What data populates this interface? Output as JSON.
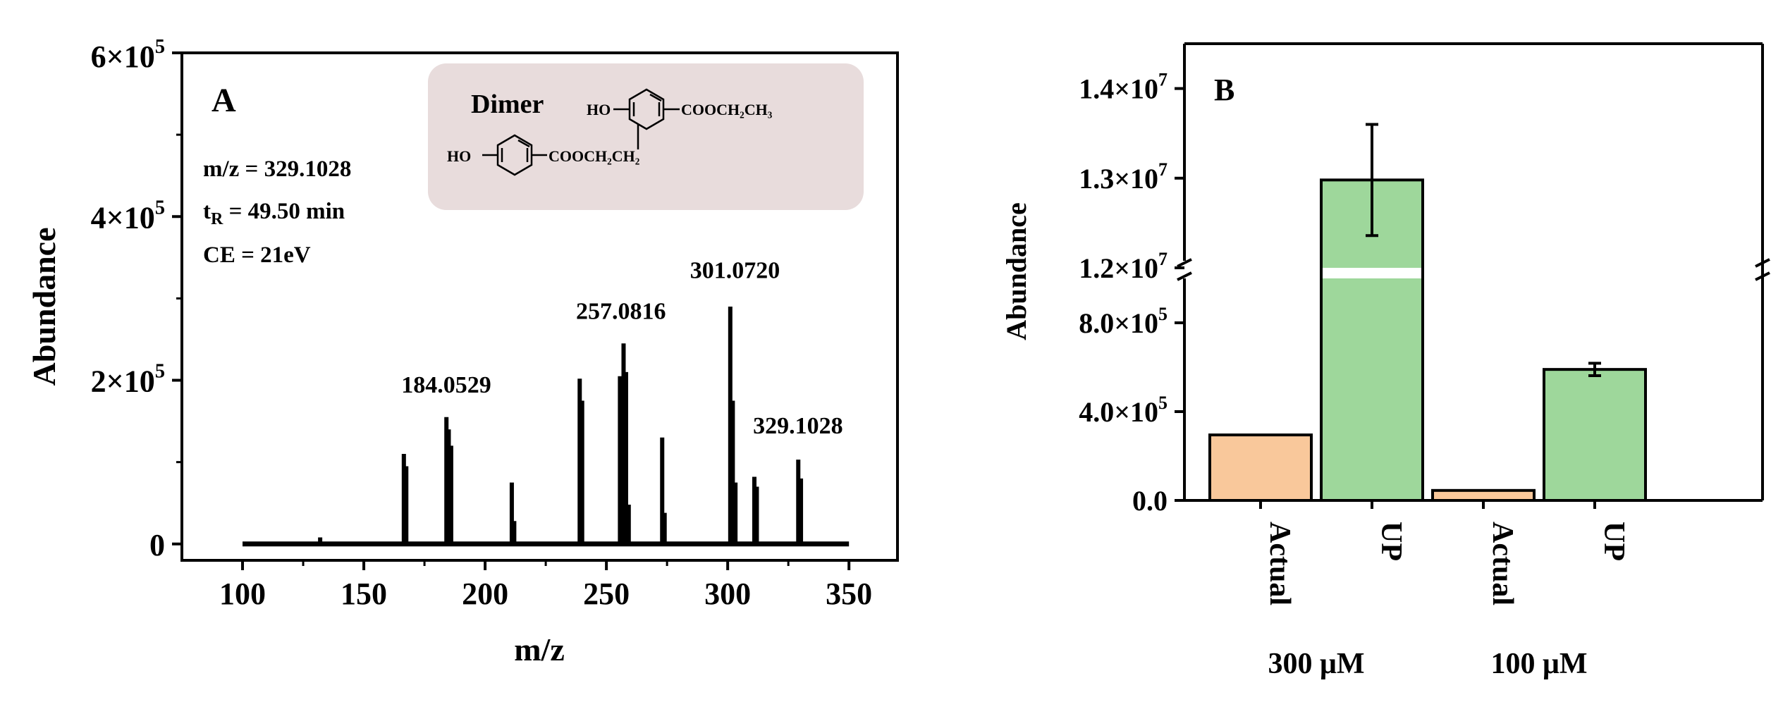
{
  "chart_data": [
    {
      "type": "bar",
      "panel_label": "A",
      "xlabel": "m/z",
      "ylabel": "Abundance",
      "xlim": [
        75,
        370
      ],
      "ylim": [
        -20000,
        600000
      ],
      "x_ticks": [
        100,
        150,
        200,
        250,
        300,
        350
      ],
      "x_tick_labels": [
        "100",
        "150",
        "200",
        "250",
        "300",
        "350"
      ],
      "y_ticks": [
        0,
        200000,
        400000,
        600000
      ],
      "y_tick_labels": [
        {
          "base": "0",
          "exp": ""
        },
        {
          "base": "2×10",
          "exp": "5"
        },
        {
          "base": "4×10",
          "exp": "5"
        },
        {
          "base": "6×10",
          "exp": "5"
        }
      ],
      "info_lines": [
        {
          "main": "m/z = 329.1028",
          "sub": "",
          "rest": ""
        },
        {
          "main": "t",
          "sub": "R",
          "rest": " = 49.50 min"
        },
        {
          "main": "CE = 21eV",
          "sub": "",
          "rest": ""
        }
      ],
      "inset": {
        "title": "Dimer",
        "group_left": "HO",
        "group_ester_1": "COOCH₂CH₂",
        "group_right_top": "HO",
        "group_ester_2": "COOCH₂CH₃"
      },
      "peaks": [
        {
          "x": 132,
          "y": 8000
        },
        {
          "x": 166.5,
          "y": 110000
        },
        {
          "x": 167.5,
          "y": 95000
        },
        {
          "x": 184.05,
          "y": 155000
        },
        {
          "x": 185.0,
          "y": 140000
        },
        {
          "x": 186.0,
          "y": 120000
        },
        {
          "x": 211,
          "y": 75000
        },
        {
          "x": 212,
          "y": 28000
        },
        {
          "x": 239,
          "y": 202000
        },
        {
          "x": 240,
          "y": 175000
        },
        {
          "x": 255.6,
          "y": 205000
        },
        {
          "x": 257.08,
          "y": 245000
        },
        {
          "x": 258.1,
          "y": 210000
        },
        {
          "x": 259.2,
          "y": 48000
        },
        {
          "x": 273,
          "y": 130000
        },
        {
          "x": 274,
          "y": 38000
        },
        {
          "x": 301.07,
          "y": 290000
        },
        {
          "x": 302.1,
          "y": 175000
        },
        {
          "x": 303.2,
          "y": 75000
        },
        {
          "x": 311,
          "y": 82000
        },
        {
          "x": 312,
          "y": 70000
        },
        {
          "x": 329.1,
          "y": 103000
        },
        {
          "x": 330.2,
          "y": 80000
        }
      ],
      "baseline_range": [
        100,
        350
      ],
      "annotations": [
        {
          "text": "184.0529",
          "x": 184,
          "y": 185000
        },
        {
          "text": "257.0816",
          "x": 256,
          "y": 275000
        },
        {
          "text": "301.0720",
          "x": 303,
          "y": 325000
        },
        {
          "text": "329.1028",
          "x": 329,
          "y": 135000
        }
      ]
    },
    {
      "type": "bar",
      "panel_label": "B",
      "ylabel": "Abundance",
      "y_axis_break": true,
      "lower_range": [
        0,
        1000000
      ],
      "upper_range": [
        12000000,
        14500000
      ],
      "y_ticks_lower": [
        0,
        400000,
        800000
      ],
      "y_tick_labels_lower": [
        {
          "base": "0.0",
          "exp": ""
        },
        {
          "base": "4.0×10",
          "exp": "5"
        },
        {
          "base": "8.0×10",
          "exp": "5"
        }
      ],
      "y_ticks_upper": [
        12000000,
        13000000,
        14000000
      ],
      "y_tick_labels_upper": [
        {
          "base": "1.2×10",
          "exp": "7"
        },
        {
          "base": "1.3×10",
          "exp": "7"
        },
        {
          "base": "1.4×10",
          "exp": "7"
        }
      ],
      "categories": [
        "Actual",
        "UP",
        "Actual",
        "UP"
      ],
      "groups": [
        "300 μM",
        "100 μM"
      ],
      "values": [
        295000,
        12980000,
        45000,
        590000
      ],
      "errors": [
        0,
        620000,
        0,
        28000
      ],
      "colors": [
        "#F9C89B",
        "#9ED79B",
        "#F9C89B",
        "#9ED79B"
      ]
    }
  ]
}
